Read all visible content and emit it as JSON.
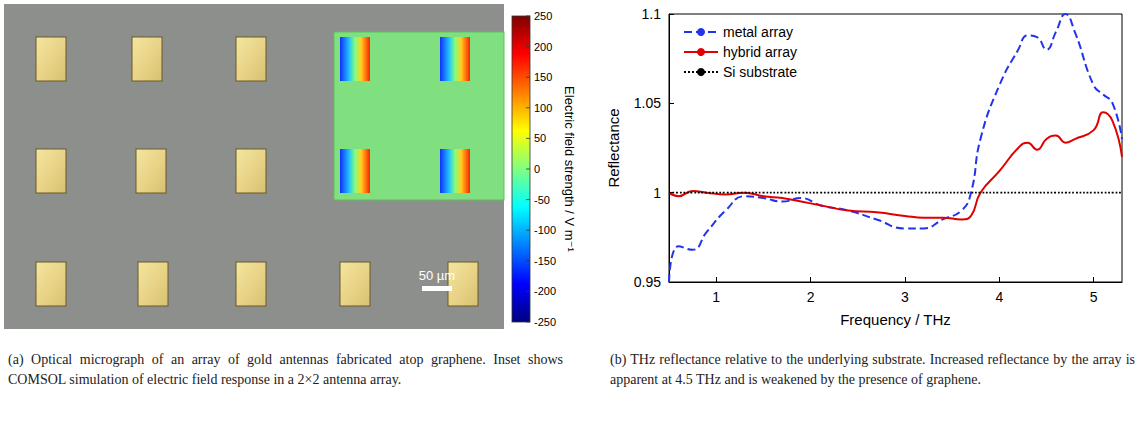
{
  "panel_a": {
    "caption": "(a) Optical micrograph of an array of gold antennas fabricated atop graphene. Inset shows COMSOL simulation of electric field response in a 2×2 antenna array.",
    "scale_bar": "50 µm",
    "colorbar": {
      "title": "Electric field strength / V m⁻¹",
      "range": [
        -250,
        250
      ],
      "ticks": [
        250,
        200,
        150,
        100,
        50,
        0,
        -50,
        -100,
        -150,
        -200,
        -250
      ]
    }
  },
  "chart_data": {
    "type": "line",
    "caption": "(b) THz reflectance relative to the underlying substrate. Increased reflectance by the array is apparent at 4.5 THz and is weakened by the presence of graphene.",
    "xlabel": "Frequency / THz",
    "ylabel": "Reflectance",
    "xlim": [
      0.5,
      5.3
    ],
    "xticks": [
      1,
      2,
      3,
      4,
      5
    ],
    "ylim": [
      0.95,
      1.1
    ],
    "yticks": [
      0.95,
      1,
      1.05,
      1.1
    ],
    "legend": "top-left",
    "grid": false,
    "x": [
      0.5,
      0.6,
      0.75,
      0.9,
      1.1,
      1.3,
      1.5,
      1.7,
      1.9,
      2.1,
      2.4,
      2.7,
      3.0,
      3.2,
      3.4,
      3.6,
      3.7,
      3.8,
      4.0,
      4.2,
      4.3,
      4.4,
      4.5,
      4.6,
      4.7,
      4.8,
      5.0,
      5.1,
      5.2,
      5.3
    ],
    "series": [
      {
        "name": "metal array",
        "color": "#2233ee",
        "line_style": "dashed",
        "values": [
          0.95,
          0.97,
          0.968,
          0.978,
          0.99,
          0.998,
          0.997,
          0.995,
          0.997,
          0.993,
          0.99,
          0.985,
          0.98,
          0.98,
          0.985,
          0.99,
          1.0,
          1.03,
          1.06,
          1.08,
          1.088,
          1.087,
          1.08,
          1.09,
          1.1,
          1.09,
          1.06,
          1.055,
          1.05,
          1.03
        ]
      },
      {
        "name": "hybrid array",
        "color": "#e00000",
        "line_style": "solid",
        "values": [
          1.0,
          0.998,
          1.001,
          1.0,
          0.999,
          1.0,
          0.998,
          0.997,
          0.995,
          0.993,
          0.99,
          0.989,
          0.987,
          0.986,
          0.986,
          0.985,
          0.987,
          1.0,
          1.012,
          1.025,
          1.028,
          1.024,
          1.03,
          1.032,
          1.028,
          1.03,
          1.035,
          1.045,
          1.04,
          1.02
        ]
      },
      {
        "name": "Si substrate",
        "color": "#000000",
        "line_style": "dotted",
        "values": [
          1,
          1,
          1,
          1,
          1,
          1,
          1,
          1,
          1,
          1,
          1,
          1,
          1,
          1,
          1,
          1,
          1,
          1,
          1,
          1,
          1,
          1,
          1,
          1,
          1,
          1,
          1,
          1,
          1,
          1
        ]
      }
    ]
  }
}
